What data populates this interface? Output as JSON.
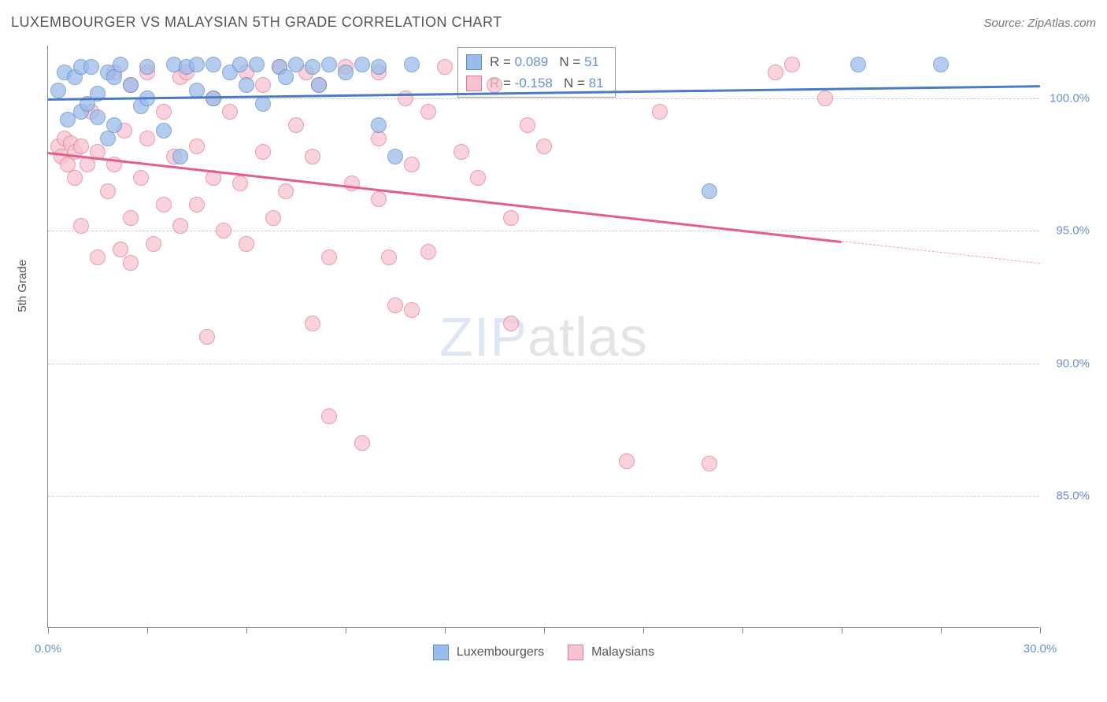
{
  "header": {
    "title": "LUXEMBOURGER VS MALAYSIAN 5TH GRADE CORRELATION CHART",
    "source": "Source: ZipAtlas.com"
  },
  "axes": {
    "y_title": "5th Grade",
    "xlim": [
      0,
      30
    ],
    "ylim": [
      80,
      102
    ],
    "x_ticks": [
      0,
      3,
      6,
      9,
      12,
      15,
      18,
      21,
      24,
      27,
      30
    ],
    "x_tick_labels": {
      "0": "0.0%",
      "30": "30.0%"
    },
    "y_gridlines": [
      85,
      90,
      95,
      100
    ],
    "y_tick_labels": {
      "85": "85.0%",
      "90": "90.0%",
      "95": "95.0%",
      "100": "100.0%"
    }
  },
  "colors": {
    "blue_fill": "#9bbce8",
    "blue_stroke": "#5f8bd0",
    "blue_line": "#4a7bc8",
    "pink_fill": "#f7c3d0",
    "pink_stroke": "#e47a9a",
    "pink_line": "#e75d8a",
    "grid": "#cccccc",
    "axis": "#888888",
    "text_dark": "#555555",
    "text_blue": "#6b8fd4",
    "background": "#ffffff"
  },
  "series": [
    {
      "name": "Luxembourgers",
      "color_key": "blue",
      "R": "0.089",
      "N": "51",
      "marker_radius": 10,
      "trend": {
        "x1": 0,
        "y1": 100.0,
        "x2": 30,
        "y2": 100.5,
        "solid_until_x": 30
      },
      "points": [
        [
          0.3,
          100.3
        ],
        [
          0.5,
          101.0
        ],
        [
          0.6,
          99.2
        ],
        [
          0.8,
          100.8
        ],
        [
          1.0,
          101.2
        ],
        [
          1.0,
          99.5
        ],
        [
          1.2,
          99.8
        ],
        [
          1.3,
          101.2
        ],
        [
          1.5,
          100.2
        ],
        [
          1.5,
          99.3
        ],
        [
          1.8,
          101.0
        ],
        [
          1.8,
          98.5
        ],
        [
          2.0,
          100.8
        ],
        [
          2.0,
          99.0
        ],
        [
          2.2,
          101.3
        ],
        [
          2.5,
          100.5
        ],
        [
          2.8,
          99.7
        ],
        [
          3.0,
          101.2
        ],
        [
          3.0,
          100.0
        ],
        [
          3.5,
          98.8
        ],
        [
          3.8,
          101.3
        ],
        [
          4.0,
          97.8
        ],
        [
          4.2,
          101.2
        ],
        [
          4.5,
          100.3
        ],
        [
          4.5,
          101.3
        ],
        [
          5.0,
          101.3
        ],
        [
          5.0,
          100.0
        ],
        [
          5.5,
          101.0
        ],
        [
          5.8,
          101.3
        ],
        [
          6.0,
          100.5
        ],
        [
          6.3,
          101.3
        ],
        [
          6.5,
          99.8
        ],
        [
          7.0,
          101.2
        ],
        [
          7.2,
          100.8
        ],
        [
          7.5,
          101.3
        ],
        [
          8.0,
          101.2
        ],
        [
          8.2,
          100.5
        ],
        [
          8.5,
          101.3
        ],
        [
          9.0,
          101.0
        ],
        [
          9.5,
          101.3
        ],
        [
          10.0,
          101.2
        ],
        [
          10.0,
          99.0
        ],
        [
          10.5,
          97.8
        ],
        [
          11.0,
          101.3
        ],
        [
          20.0,
          96.5
        ],
        [
          24.5,
          101.3
        ],
        [
          27.0,
          101.3
        ]
      ]
    },
    {
      "name": "Malaysians",
      "color_key": "pink",
      "R": "-0.158",
      "N": "81",
      "marker_radius": 10,
      "trend": {
        "x1": 0,
        "y1": 98.0,
        "x2": 30,
        "y2": 93.8,
        "solid_until_x": 24
      },
      "points": [
        [
          0.3,
          98.2
        ],
        [
          0.4,
          97.8
        ],
        [
          0.5,
          98.5
        ],
        [
          0.6,
          97.5
        ],
        [
          0.7,
          98.3
        ],
        [
          0.8,
          97.0
        ],
        [
          0.8,
          98.0
        ],
        [
          1.0,
          98.2
        ],
        [
          1.0,
          95.2
        ],
        [
          1.2,
          97.5
        ],
        [
          1.3,
          99.5
        ],
        [
          1.5,
          98.0
        ],
        [
          1.5,
          94.0
        ],
        [
          1.8,
          96.5
        ],
        [
          2.0,
          101.0
        ],
        [
          2.0,
          97.5
        ],
        [
          2.2,
          94.3
        ],
        [
          2.3,
          98.8
        ],
        [
          2.5,
          100.5
        ],
        [
          2.5,
          95.5
        ],
        [
          2.5,
          93.8
        ],
        [
          2.8,
          97.0
        ],
        [
          3.0,
          101.0
        ],
        [
          3.0,
          98.5
        ],
        [
          3.2,
          94.5
        ],
        [
          3.5,
          99.5
        ],
        [
          3.5,
          96.0
        ],
        [
          3.8,
          97.8
        ],
        [
          4.0,
          100.8
        ],
        [
          4.0,
          95.2
        ],
        [
          4.2,
          101.0
        ],
        [
          4.5,
          98.2
        ],
        [
          4.5,
          96.0
        ],
        [
          4.8,
          91.0
        ],
        [
          5.0,
          100.0
        ],
        [
          5.0,
          97.0
        ],
        [
          5.3,
          95.0
        ],
        [
          5.5,
          99.5
        ],
        [
          5.8,
          96.8
        ],
        [
          6.0,
          101.0
        ],
        [
          6.0,
          94.5
        ],
        [
          6.5,
          98.0
        ],
        [
          6.5,
          100.5
        ],
        [
          6.8,
          95.5
        ],
        [
          7.0,
          101.2
        ],
        [
          7.2,
          96.5
        ],
        [
          7.5,
          99.0
        ],
        [
          7.8,
          101.0
        ],
        [
          8.0,
          97.8
        ],
        [
          8.0,
          91.5
        ],
        [
          8.2,
          100.5
        ],
        [
          8.5,
          94.0
        ],
        [
          8.5,
          88.0
        ],
        [
          9.0,
          101.2
        ],
        [
          9.2,
          96.8
        ],
        [
          9.5,
          87.0
        ],
        [
          10.0,
          101.0
        ],
        [
          10.0,
          98.5
        ],
        [
          10.0,
          96.2
        ],
        [
          10.3,
          94.0
        ],
        [
          10.5,
          92.2
        ],
        [
          10.8,
          100.0
        ],
        [
          11.0,
          97.5
        ],
        [
          11.0,
          92.0
        ],
        [
          11.5,
          99.5
        ],
        [
          11.5,
          94.2
        ],
        [
          12.0,
          101.2
        ],
        [
          12.5,
          98.0
        ],
        [
          13.0,
          97.0
        ],
        [
          13.5,
          100.5
        ],
        [
          14.0,
          95.5
        ],
        [
          14.0,
          91.5
        ],
        [
          14.5,
          99.0
        ],
        [
          15.0,
          98.2
        ],
        [
          17.5,
          86.3
        ],
        [
          18.5,
          99.5
        ],
        [
          20.0,
          86.2
        ],
        [
          22.0,
          101.0
        ],
        [
          22.5,
          101.3
        ],
        [
          23.5,
          100.0
        ]
      ]
    }
  ],
  "legend_box": {
    "r_label": "R =",
    "n_label": "N ="
  },
  "bottom_legend": {
    "items": [
      "Luxembourgers",
      "Malaysians"
    ]
  },
  "watermark": {
    "part1": "ZIP",
    "part2": "atlas"
  }
}
